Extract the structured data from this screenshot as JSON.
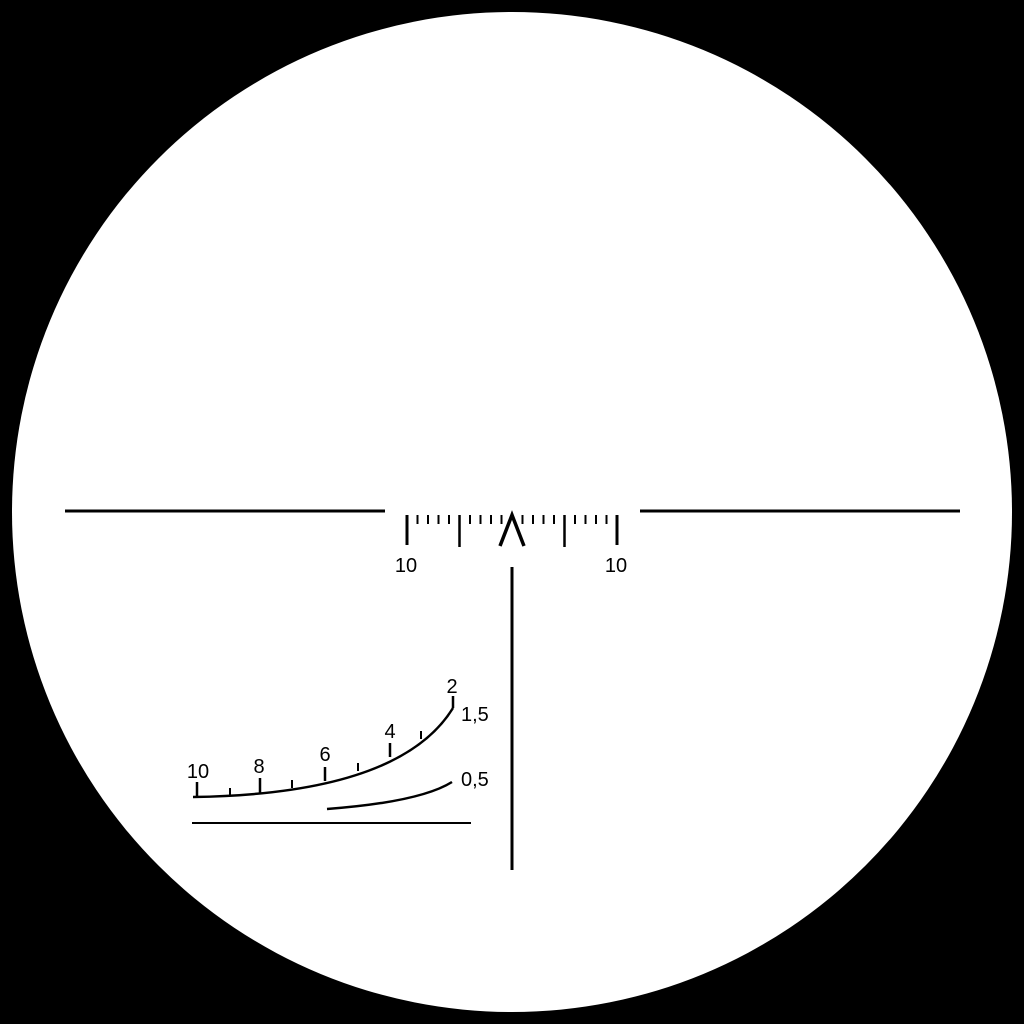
{
  "reticle": {
    "background_color": "#000000",
    "field_color": "#ffffff",
    "line_color": "#000000",
    "scale_labels": {
      "left": "10",
      "right": "10"
    },
    "range_labels": {
      "r10": "10",
      "r8": "8",
      "r6": "6",
      "r4": "4",
      "r2": "2",
      "r1_5": "1,5",
      "r0_5": "0,5"
    }
  }
}
